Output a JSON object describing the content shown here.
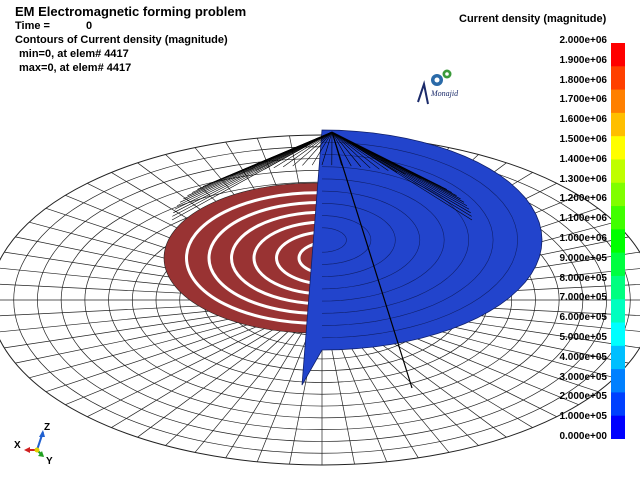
{
  "header": {
    "title": "EM Electromagnetic forming problem",
    "time_label": "Time =",
    "time_value": "0",
    "contour_label": "Contours of Current density (magnitude)",
    "min_line": "min=0, at elem# 4417",
    "max_line": "max=0, at elem# 4417"
  },
  "legend": {
    "title": "Current density (magnitude)",
    "ticks": [
      "2.000e+06",
      "1.900e+06",
      "1.800e+06",
      "1.700e+06",
      "1.600e+06",
      "1.500e+06",
      "1.400e+06",
      "1.300e+06",
      "1.200e+06",
      "1.100e+06",
      "1.000e+06",
      "9.000e+05",
      "8.000e+05",
      "7.000e+05",
      "6.000e+05",
      "5.000e+05",
      "4.000e+05",
      "3.000e+05",
      "2.000e+05",
      "1.000e+05",
      "0.000e+00"
    ],
    "colors": [
      "#ff0000",
      "#ff4000",
      "#ff8000",
      "#ffbf00",
      "#ffff00",
      "#bfff00",
      "#80ff00",
      "#40ff00",
      "#00ff00",
      "#00ff40",
      "#00ff80",
      "#00ffbf",
      "#00ffff",
      "#00bfff",
      "#0080ff",
      "#0040ff",
      "#0000ff"
    ]
  },
  "logo": {
    "text": "Monajid"
  },
  "axes": {
    "x": "X",
    "y": "Y",
    "z": "Z"
  },
  "colors": {
    "sheet_mesh": "#ffffff",
    "mesh_lines": "#222222",
    "coil": "#993333",
    "tool": "#2244cc",
    "cone_lines": "#000000",
    "background": "#ffffff"
  }
}
